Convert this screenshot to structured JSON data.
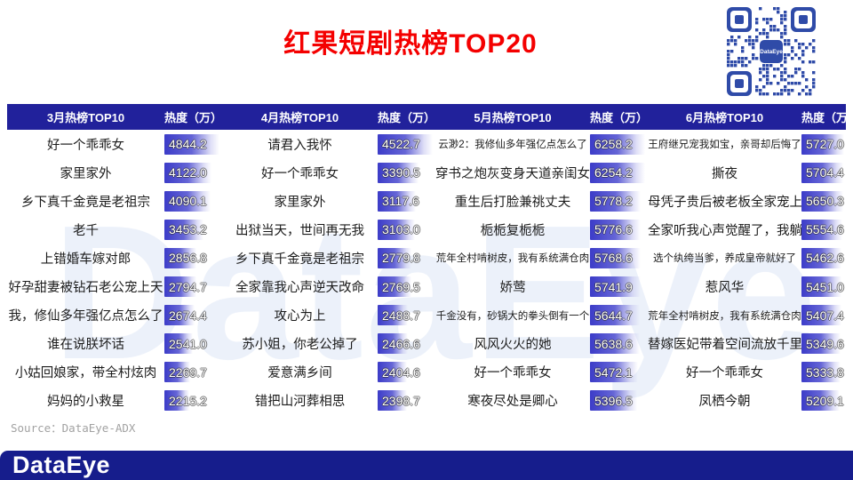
{
  "title": "红果短剧热榜TOP20",
  "source": "Source：DataEye-ADX",
  "footer_logo": "DataEye",
  "watermark": "DataEye",
  "qr": {
    "center_label": "DataEye"
  },
  "colors": {
    "header_bg": "#21219B",
    "footer_bg": "#161D8C",
    "title_red": "#F40000",
    "bar_blue": "#3C3CC8",
    "qr_blue": "#2F4BA8"
  },
  "chart_data": {
    "type": "bar",
    "unit": "万",
    "legend_position": "none",
    "groups": [
      {
        "header": "3月热榜TOP10",
        "heat_header": "热度（万）",
        "items": [
          {
            "title": "好一个乖乖女",
            "value": "4844.2"
          },
          {
            "title": "家里家外",
            "value": "4122.0"
          },
          {
            "title": "乡下真千金竟是老祖宗",
            "value": "4090.1"
          },
          {
            "title": "老千",
            "value": "3453.2"
          },
          {
            "title": "上错婚车嫁对郎",
            "value": "2856.8"
          },
          {
            "title": "好孕甜妻被钻石老公宠上天",
            "value": "2794.7"
          },
          {
            "title": "我，修仙多年强亿点怎么了",
            "value": "2674.4"
          },
          {
            "title": "谁在说朕坏话",
            "value": "2541.0"
          },
          {
            "title": "小姑回娘家，带全村炫肉",
            "value": "2269.7"
          },
          {
            "title": "妈妈的小救星",
            "value": "2215.2"
          }
        ]
      },
      {
        "header": "4月热榜TOP10",
        "heat_header": "热度（万）",
        "items": [
          {
            "title": "请君入我怀",
            "value": "4522.7"
          },
          {
            "title": "好一个乖乖女",
            "value": "3390.5"
          },
          {
            "title": "家里家外",
            "value": "3117.6"
          },
          {
            "title": "出狱当天，世间再无我",
            "value": "3103.0"
          },
          {
            "title": "乡下真千金竟是老祖宗",
            "value": "2779.8"
          },
          {
            "title": "全家靠我心声逆天改命",
            "value": "2769.5"
          },
          {
            "title": "攻心为上",
            "value": "2488.7"
          },
          {
            "title": "苏小姐，你老公掉了",
            "value": "2466.6"
          },
          {
            "title": "爱意满乡间",
            "value": "2404.6"
          },
          {
            "title": "错把山河葬相思",
            "value": "2398.7"
          }
        ]
      },
      {
        "header": "5月热榜TOP10",
        "heat_header": "热度（万）",
        "items": [
          {
            "title": "云渺2：我修仙多年强亿点怎么了",
            "value": "6258.2"
          },
          {
            "title": "穿书之炮灰变身天道亲闺女",
            "value": "6254.2"
          },
          {
            "title": "重生后打脸兼祧丈夫",
            "value": "5778.2"
          },
          {
            "title": "栀栀复栀栀",
            "value": "5776.6"
          },
          {
            "title": "荒年全村啃树皮，我有系统满仓肉",
            "value": "5768.6"
          },
          {
            "title": "娇莺",
            "value": "5741.9"
          },
          {
            "title": "千金没有，砂锅大的拳头倒有一个",
            "value": "5644.7"
          },
          {
            "title": "风风火火的她",
            "value": "5638.6"
          },
          {
            "title": "好一个乖乖女",
            "value": "5472.1"
          },
          {
            "title": "寒夜尽处是卿心",
            "value": "5396.5"
          }
        ]
      },
      {
        "header": "6月热榜TOP10",
        "heat_header": "热度（万）",
        "items": [
          {
            "title": "王府继兄宠我如宝，亲哥却后悔了",
            "value": "5727.0"
          },
          {
            "title": "撕夜",
            "value": "5704.4"
          },
          {
            "title": "母凭子贵后被老板全家宠上天",
            "value": "5650.3"
          },
          {
            "title": "全家听我心声觉醒了，我躺赢",
            "value": "5554.6"
          },
          {
            "title": "选个纨绔当爹，养成皇帝就好了",
            "value": "5462.6"
          },
          {
            "title": "惹风华",
            "value": "5451.0"
          },
          {
            "title": "荒年全村啃树皮，我有系统满仓肉",
            "value": "5407.4"
          },
          {
            "title": "替嫁医妃带着空间流放千里",
            "value": "5349.6"
          },
          {
            "title": "好一个乖乖女",
            "value": "5333.8"
          },
          {
            "title": "凤栖今朝",
            "value": "5209.1"
          }
        ]
      }
    ]
  }
}
